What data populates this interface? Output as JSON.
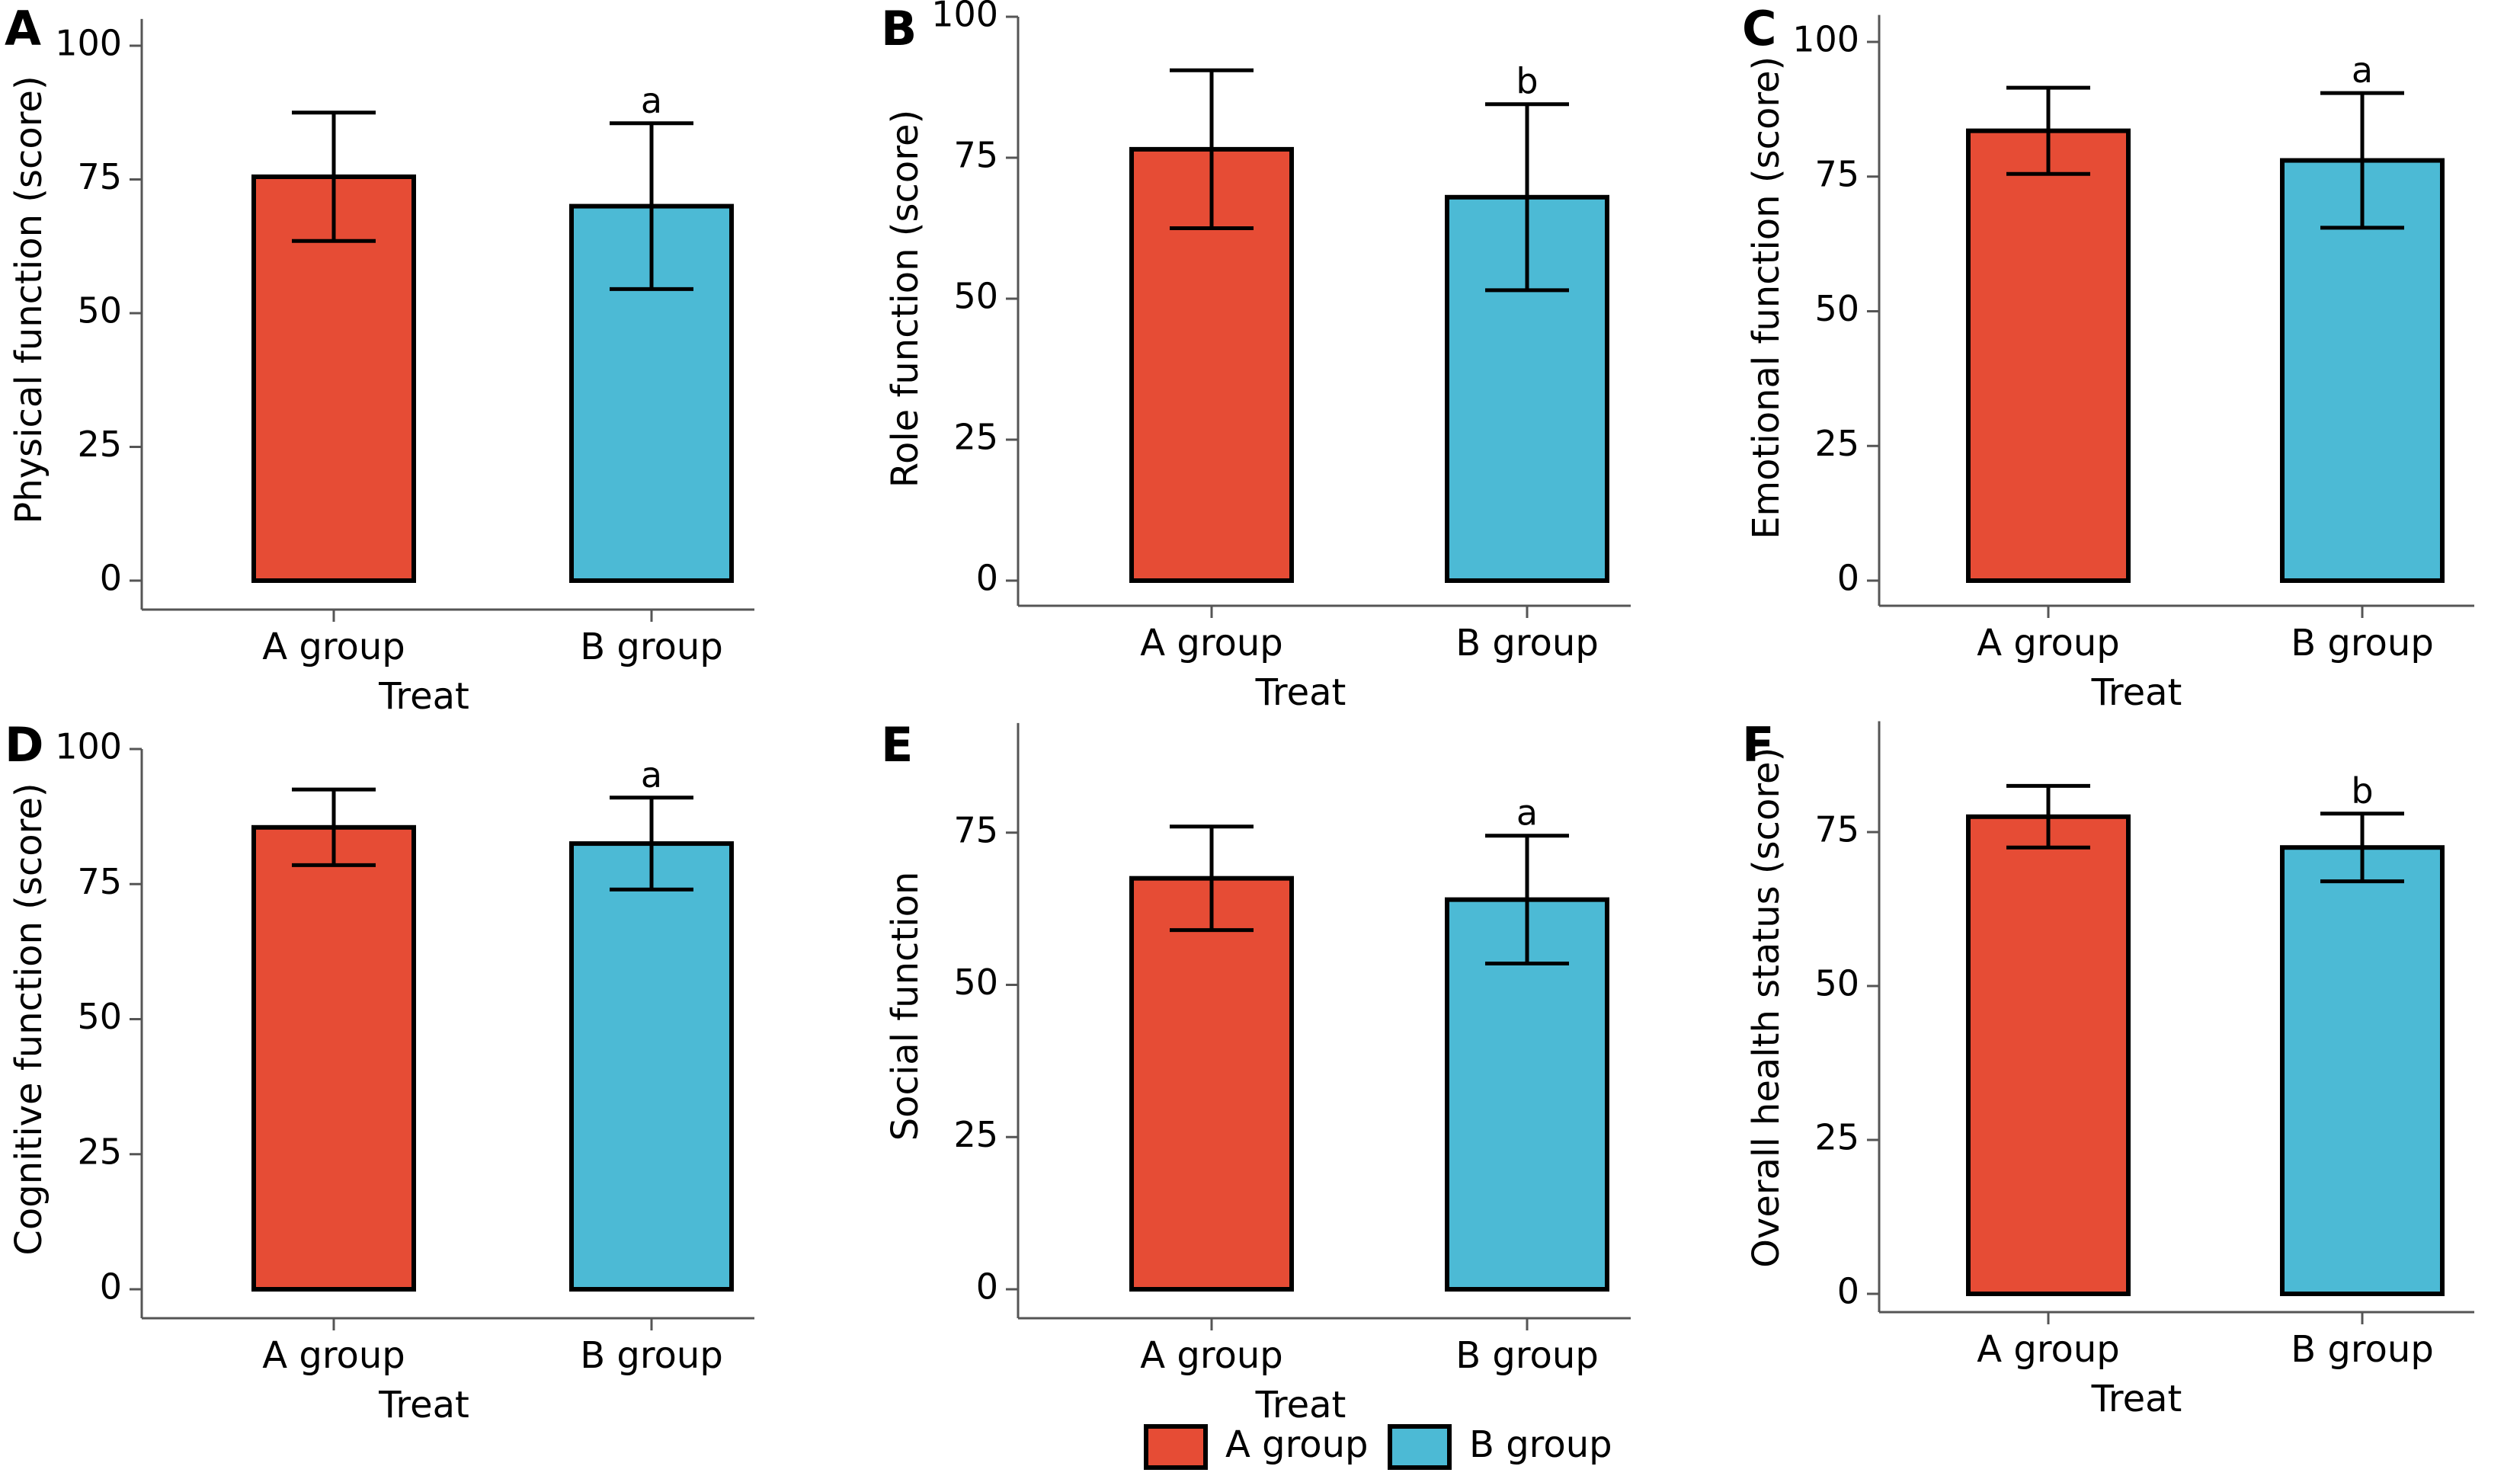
{
  "colors": {
    "a_group": "#e64c35",
    "b_group": "#4cbad5",
    "stroke": "#000000"
  },
  "legend": {
    "items": [
      "A group",
      "B group"
    ]
  },
  "chart_data": [
    {
      "panel": "A",
      "type": "bar",
      "categories": [
        "A group",
        "B group"
      ],
      "values": [
        75.5,
        70
      ],
      "errors": [
        12,
        15.5
      ],
      "significance": [
        "",
        "a"
      ],
      "ylabel": "Physical function (score)",
      "xlabel": "Treat",
      "ylim": [
        0,
        105
      ],
      "yticks": [
        0,
        25,
        50,
        75,
        100
      ],
      "grid": false,
      "legend": "bottom-center"
    },
    {
      "panel": "B",
      "type": "bar",
      "categories": [
        "A group",
        "B group"
      ],
      "values": [
        76.5,
        68
      ],
      "errors": [
        14,
        16.5
      ],
      "significance": [
        "",
        "b"
      ],
      "ylabel": "Role function (score)",
      "xlabel": "Treat",
      "ylim": [
        0,
        100
      ],
      "yticks": [
        0,
        25,
        50,
        75,
        100
      ],
      "grid": false,
      "legend": "bottom-center"
    },
    {
      "panel": "C",
      "type": "bar",
      "categories": [
        "A group",
        "B group"
      ],
      "values": [
        83.5,
        78
      ],
      "errors": [
        8,
        12.5
      ],
      "significance": [
        "",
        "a"
      ],
      "ylabel": "Emotional function (score)",
      "xlabel": "Treat",
      "ylim": [
        0,
        105
      ],
      "yticks": [
        0,
        25,
        50,
        75,
        100
      ],
      "grid": false,
      "legend": "bottom-center"
    },
    {
      "panel": "D",
      "type": "bar",
      "categories": [
        "A group",
        "B group"
      ],
      "values": [
        85.5,
        82.5
      ],
      "errors": [
        7,
        8.5
      ],
      "significance": [
        "",
        "a"
      ],
      "ylabel": "Cognitive function (score)",
      "xlabel": "Treat",
      "ylim": [
        0,
        100
      ],
      "yticks": [
        0,
        25,
        50,
        75,
        100
      ],
      "grid": false,
      "legend": "bottom-center"
    },
    {
      "panel": "E",
      "type": "bar",
      "categories": [
        "A group",
        "B group"
      ],
      "values": [
        67.5,
        64
      ],
      "errors": [
        8.5,
        10.5
      ],
      "significance": [
        "",
        "a"
      ],
      "ylabel": "Social function",
      "xlabel": "Treat",
      "ylim": [
        0,
        93
      ],
      "yticks": [
        0,
        25,
        50,
        75
      ],
      "grid": false,
      "legend": "bottom-center"
    },
    {
      "panel": "F",
      "type": "bar",
      "categories": [
        "A group",
        "B group"
      ],
      "values": [
        77.5,
        72.5
      ],
      "errors": [
        5,
        5.5
      ],
      "significance": [
        "",
        "b"
      ],
      "ylabel": "Overall health status (score)",
      "xlabel": "Treat",
      "ylim": [
        0,
        93
      ],
      "yticks": [
        0,
        25,
        50,
        75
      ],
      "grid": false,
      "legend": "bottom-center"
    }
  ]
}
